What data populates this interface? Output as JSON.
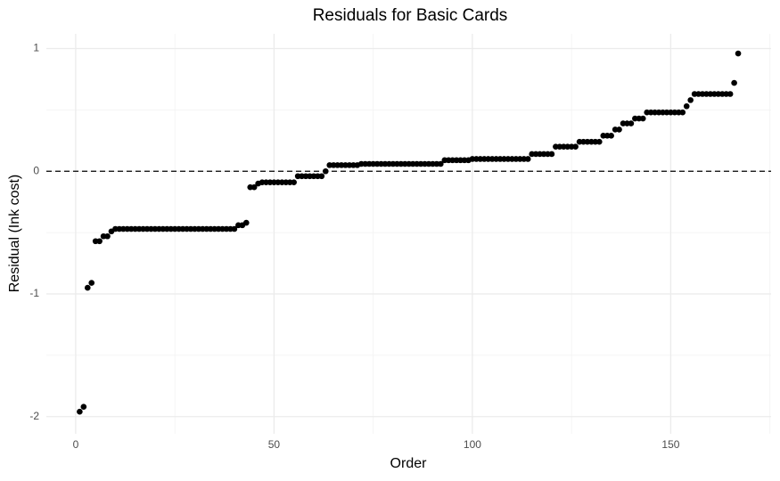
{
  "chart_data": {
    "type": "scatter",
    "title": "Residuals for Basic Cards",
    "x_label": "Order",
    "y_label": "Residual (Ink cost)",
    "x": [
      1,
      2,
      3,
      4,
      5,
      6,
      7,
      8,
      9,
      10,
      11,
      12,
      13,
      14,
      15,
      16,
      17,
      18,
      19,
      20,
      21,
      22,
      23,
      24,
      25,
      26,
      27,
      28,
      29,
      30,
      31,
      32,
      33,
      34,
      35,
      36,
      37,
      38,
      39,
      40,
      41,
      42,
      43,
      44,
      45,
      46,
      47,
      48,
      49,
      50,
      51,
      52,
      53,
      54,
      55,
      56,
      57,
      58,
      59,
      60,
      61,
      62,
      63,
      64,
      65,
      66,
      67,
      68,
      69,
      70,
      71,
      72,
      73,
      74,
      75,
      76,
      77,
      78,
      79,
      80,
      81,
      82,
      83,
      84,
      85,
      86,
      87,
      88,
      89,
      90,
      91,
      92,
      93,
      94,
      95,
      96,
      97,
      98,
      99,
      100,
      101,
      102,
      103,
      104,
      105,
      106,
      107,
      108,
      109,
      110,
      111,
      112,
      113,
      114,
      115,
      116,
      117,
      118,
      119,
      120,
      121,
      122,
      123,
      124,
      125,
      126,
      127,
      128,
      129,
      130,
      131,
      132,
      133,
      134,
      135,
      136,
      137,
      138,
      139,
      140,
      141,
      142,
      143,
      144,
      145,
      146,
      147,
      148,
      149,
      150,
      151,
      152,
      153,
      154,
      155,
      156,
      157,
      158,
      159,
      160,
      161,
      162,
      163,
      164,
      165,
      166,
      167
    ],
    "values": [
      -1.96,
      -1.92,
      -0.95,
      -0.91,
      -0.57,
      -0.57,
      -0.53,
      -0.53,
      -0.49,
      -0.47,
      -0.47,
      -0.47,
      -0.47,
      -0.47,
      -0.47,
      -0.47,
      -0.47,
      -0.47,
      -0.47,
      -0.47,
      -0.47,
      -0.47,
      -0.47,
      -0.47,
      -0.47,
      -0.47,
      -0.47,
      -0.47,
      -0.47,
      -0.47,
      -0.47,
      -0.47,
      -0.47,
      -0.47,
      -0.47,
      -0.47,
      -0.47,
      -0.47,
      -0.47,
      -0.47,
      -0.44,
      -0.44,
      -0.42,
      -0.13,
      -0.13,
      -0.1,
      -0.09,
      -0.09,
      -0.09,
      -0.09,
      -0.09,
      -0.09,
      -0.09,
      -0.09,
      -0.09,
      -0.04,
      -0.04,
      -0.04,
      -0.04,
      -0.04,
      -0.04,
      -0.04,
      0,
      0.05,
      0.05,
      0.05,
      0.05,
      0.05,
      0.05,
      0.05,
      0.05,
      0.06,
      0.06,
      0.06,
      0.06,
      0.06,
      0.06,
      0.06,
      0.06,
      0.06,
      0.06,
      0.06,
      0.06,
      0.06,
      0.06,
      0.06,
      0.06,
      0.06,
      0.06,
      0.06,
      0.06,
      0.06,
      0.09,
      0.09,
      0.09,
      0.09,
      0.09,
      0.09,
      0.09,
      0.1,
      0.1,
      0.1,
      0.1,
      0.1,
      0.1,
      0.1,
      0.1,
      0.1,
      0.1,
      0.1,
      0.1,
      0.1,
      0.1,
      0.1,
      0.14,
      0.14,
      0.14,
      0.14,
      0.14,
      0.14,
      0.2,
      0.2,
      0.2,
      0.2,
      0.2,
      0.2,
      0.24,
      0.24,
      0.24,
      0.24,
      0.24,
      0.24,
      0.29,
      0.29,
      0.29,
      0.34,
      0.34,
      0.39,
      0.39,
      0.39,
      0.43,
      0.43,
      0.43,
      0.48,
      0.48,
      0.48,
      0.48,
      0.48,
      0.48,
      0.48,
      0.48,
      0.48,
      0.48,
      0.53,
      0.58,
      0.63,
      0.63,
      0.63,
      0.63,
      0.63,
      0.63,
      0.63,
      0.63,
      0.63,
      0.63,
      0.72,
      0.96
    ],
    "color": "#000000",
    "xlim": [
      -7.4,
      175.3
    ],
    "xticks": [
      0,
      50,
      100,
      150
    ],
    "ylim": [
      -2.14,
      1.12
    ],
    "yticks": [
      -2,
      -1,
      0,
      1
    ],
    "hline": 0,
    "grid": true
  }
}
